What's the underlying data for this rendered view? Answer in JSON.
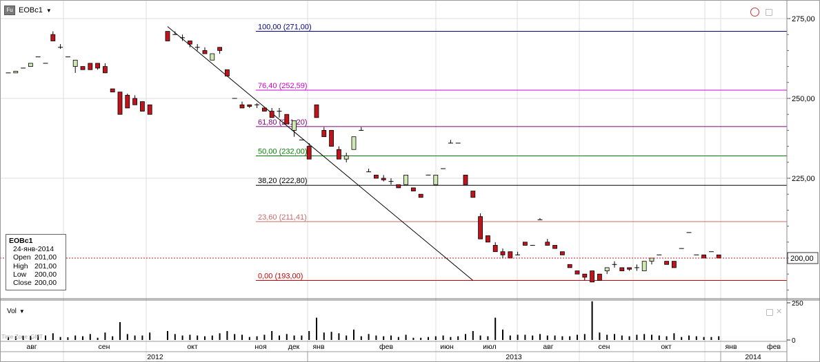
{
  "header": {
    "badge": "Fu",
    "symbol": "EOBc1"
  },
  "data_window": {
    "symbol": "EOBc1",
    "date": "24-янв-2014",
    "rows": [
      {
        "label": "Open",
        "value": "201,00"
      },
      {
        "label": "High",
        "value": "201,00"
      },
      {
        "label": "Low",
        "value": "200,00"
      },
      {
        "label": "Close",
        "value": "200,00"
      }
    ]
  },
  "volume_pane": {
    "label": "Vol",
    "timezone": "Time Zone: GMT"
  },
  "last_price_label": "200,00",
  "colors": {
    "up": "#cfe8b4",
    "down": "#c0141c",
    "trendline": "#000000",
    "last_price": "#c0141c"
  },
  "chart_data": {
    "type": "candlestick",
    "price_axis": {
      "ticks": [
        "275,00",
        "250,00",
        "225,00"
      ],
      "values": [
        275,
        250,
        225
      ],
      "range": [
        186,
        278
      ]
    },
    "volume_axis": {
      "ticks": [
        "250",
        "0"
      ],
      "values": [
        250,
        0
      ]
    },
    "month_labels": [
      "авг",
      "сен",
      "окт",
      "ноя",
      "дек",
      "янв",
      "фев",
      "июн",
      "июл",
      "авг",
      "сен",
      "окт",
      "янв",
      "фев"
    ],
    "year_labels": [
      "2012",
      "2013",
      "2014"
    ],
    "fib_levels": [
      {
        "label": "100,00 (271,00)",
        "price": 271.0,
        "color": "#000080"
      },
      {
        "label": "76,40 (252,59)",
        "price": 252.59,
        "color": "#cc00cc"
      },
      {
        "label": "61,80 (241,20)",
        "price": 241.2,
        "color": "#800080"
      },
      {
        "label": "50,00 (232,00)",
        "price": 232.0,
        "color": "#008000"
      },
      {
        "label": "38,20 (222,80)",
        "price": 222.8,
        "color": "#000000"
      },
      {
        "label": "23,60 (211,41)",
        "price": 211.41,
        "color": "#cc6666"
      },
      {
        "label": "0,00 (193,00)",
        "price": 193.0,
        "color": "#cc0000"
      }
    ],
    "trendline": [
      {
        "index": 20,
        "price": 272.5
      },
      {
        "index": 61,
        "price": 193.0
      }
    ],
    "last_price": 200.0,
    "candles": [
      {
        "o": 258,
        "h": 258,
        "l": 258,
        "c": 258,
        "v": 20
      },
      {
        "o": 258,
        "h": 258.5,
        "l": 258,
        "c": 258.5,
        "v": 25
      },
      {
        "o": 259.5,
        "h": 259.5,
        "l": 259.5,
        "c": 259.5,
        "v": 30
      },
      {
        "o": 260,
        "h": 261,
        "l": 260,
        "c": 261,
        "v": 28
      },
      {
        "o": 263,
        "h": 263,
        "l": 263,
        "c": 263,
        "v": 35
      },
      {
        "o": 261,
        "h": 261,
        "l": 261,
        "c": 261,
        "v": 30
      },
      {
        "o": 270,
        "h": 271,
        "l": 268,
        "c": 268,
        "v": 45
      },
      {
        "o": 266,
        "h": 267,
        "l": 265.5,
        "c": 266,
        "v": 20
      },
      {
        "o": 263,
        "h": 263,
        "l": 263,
        "c": 263,
        "v": 18
      },
      {
        "o": 260,
        "h": 262,
        "l": 258,
        "c": 262,
        "v": 30
      },
      {
        "o": 260,
        "h": 260,
        "l": 259,
        "c": 259,
        "v": 25
      },
      {
        "o": 261,
        "h": 261,
        "l": 259,
        "c": 259,
        "v": 40
      },
      {
        "o": 261,
        "h": 261,
        "l": 259,
        "c": 259.5,
        "v": 15
      },
      {
        "o": 260,
        "h": 261,
        "l": 258,
        "c": 258,
        "v": 50
      },
      {
        "o": 253,
        "h": 253,
        "l": 252,
        "c": 252,
        "v": 25
      },
      {
        "o": 252,
        "h": 252,
        "l": 245,
        "c": 245,
        "v": 120
      },
      {
        "o": 251,
        "h": 251.5,
        "l": 247,
        "c": 247,
        "v": 40
      },
      {
        "o": 250,
        "h": 251,
        "l": 248,
        "c": 248,
        "v": 30
      },
      {
        "o": 249,
        "h": 249,
        "l": 246,
        "c": 246,
        "v": 30
      },
      {
        "o": 248,
        "h": 248,
        "l": 245,
        "c": 245,
        "v": 50
      },
      {
        "o": 271,
        "h": 271,
        "l": 268,
        "c": 268,
        "v": 60
      },
      {
        "o": 270,
        "h": 271,
        "l": 270,
        "c": 270,
        "v": 40
      },
      {
        "o": 269,
        "h": 270,
        "l": 268,
        "c": 269,
        "v": 30
      },
      {
        "o": 268,
        "h": 268,
        "l": 266,
        "c": 267,
        "v": 35
      },
      {
        "o": 266,
        "h": 267,
        "l": 265,
        "c": 266,
        "v": 30
      },
      {
        "o": 265,
        "h": 266,
        "l": 264,
        "c": 264,
        "v": 25
      },
      {
        "o": 262,
        "h": 264,
        "l": 262,
        "c": 264,
        "v": 30
      },
      {
        "o": 266,
        "h": 266,
        "l": 264,
        "c": 265,
        "v": 45
      },
      {
        "o": 259,
        "h": 259,
        "l": 257,
        "c": 257,
        "v": 60
      },
      {
        "o": 250,
        "h": 250,
        "l": 250,
        "c": 250,
        "v": 40
      },
      {
        "o": 248,
        "h": 249,
        "l": 247,
        "c": 247,
        "v": 35
      },
      {
        "o": 248,
        "h": 248,
        "l": 247,
        "c": 247.5,
        "v": 20
      },
      {
        "o": 248,
        "h": 248.5,
        "l": 247,
        "c": 248,
        "v": 25
      },
      {
        "o": 247,
        "h": 247,
        "l": 246,
        "c": 246,
        "v": 35
      },
      {
        "o": 246,
        "h": 247,
        "l": 244,
        "c": 244,
        "v": 60
      },
      {
        "o": 246,
        "h": 247,
        "l": 244,
        "c": 246,
        "v": 30
      },
      {
        "o": 245,
        "h": 245,
        "l": 242,
        "c": 242,
        "v": 40
      },
      {
        "o": 240,
        "h": 243,
        "l": 238,
        "c": 243,
        "v": 30
      },
      {
        "o": 237,
        "h": 237,
        "l": 237,
        "c": 237,
        "v": 30
      },
      {
        "o": 235,
        "h": 236,
        "l": 231,
        "c": 231,
        "v": 60
      },
      {
        "o": 248,
        "h": 248,
        "l": 244,
        "c": 244,
        "v": 150
      },
      {
        "o": 240,
        "h": 241,
        "l": 238,
        "c": 238,
        "v": 50
      },
      {
        "o": 240,
        "h": 240,
        "l": 235,
        "c": 235,
        "v": 55
      },
      {
        "o": 234,
        "h": 235,
        "l": 231,
        "c": 231,
        "v": 45
      },
      {
        "o": 231,
        "h": 233,
        "l": 230,
        "c": 232,
        "v": 30
      },
      {
        "o": 234,
        "h": 238,
        "l": 234,
        "c": 238,
        "v": 70
      },
      {
        "o": 240,
        "h": 241,
        "l": 240,
        "c": 240,
        "v": 25
      },
      {
        "o": 227,
        "h": 228,
        "l": 227,
        "c": 227,
        "v": 40
      },
      {
        "o": 226,
        "h": 226,
        "l": 225,
        "c": 225,
        "v": 30
      },
      {
        "o": 225,
        "h": 226,
        "l": 224,
        "c": 224.5,
        "v": 25
      },
      {
        "o": 224,
        "h": 225,
        "l": 223,
        "c": 224,
        "v": 30
      },
      {
        "o": 223,
        "h": 223,
        "l": 222,
        "c": 222,
        "v": 20
      },
      {
        "o": 223,
        "h": 226,
        "l": 223,
        "c": 226,
        "v": 35
      },
      {
        "o": 222,
        "h": 222,
        "l": 221,
        "c": 221,
        "v": 15
      },
      {
        "o": 220,
        "h": 220,
        "l": 219,
        "c": 219,
        "v": 15
      },
      {
        "o": 226,
        "h": 226,
        "l": 226,
        "c": 226,
        "v": 20
      },
      {
        "o": 223,
        "h": 226,
        "l": 223,
        "c": 226,
        "v": 25
      },
      {
        "o": 228,
        "h": 228,
        "l": 228,
        "c": 228,
        "v": 30
      },
      {
        "o": 236,
        "h": 237,
        "l": 236,
        "c": 236,
        "v": 20
      },
      {
        "o": 236,
        "h": 236,
        "l": 236,
        "c": 236,
        "v": 25
      },
      {
        "o": 226,
        "h": 226,
        "l": 223,
        "c": 223,
        "v": 40
      },
      {
        "o": 221,
        "h": 221,
        "l": 219,
        "c": 219,
        "v": 60
      },
      {
        "o": 213,
        "h": 214,
        "l": 206,
        "c": 206,
        "v": 30
      },
      {
        "o": 207,
        "h": 207,
        "l": 205,
        "c": 205,
        "v": 25
      },
      {
        "o": 204,
        "h": 205,
        "l": 202,
        "c": 202,
        "v": 150
      },
      {
        "o": 202,
        "h": 203,
        "l": 200,
        "c": 201,
        "v": 70
      },
      {
        "o": 202,
        "h": 202,
        "l": 200,
        "c": 200,
        "v": 30
      },
      {
        "o": 201,
        "h": 202,
        "l": 201,
        "c": 201,
        "v": 35
      },
      {
        "o": 205,
        "h": 205,
        "l": 204,
        "c": 204,
        "v": 35
      },
      {
        "o": 204,
        "h": 204,
        "l": 204,
        "c": 204,
        "v": 30
      },
      {
        "o": 212,
        "h": 212.5,
        "l": 212,
        "c": 212,
        "v": 40
      },
      {
        "o": 205,
        "h": 206,
        "l": 204,
        "c": 204,
        "v": 30
      },
      {
        "o": 204,
        "h": 204,
        "l": 203,
        "c": 203,
        "v": 30
      },
      {
        "o": 202,
        "h": 202,
        "l": 201,
        "c": 201,
        "v": 25
      },
      {
        "o": 198,
        "h": 198,
        "l": 197,
        "c": 197,
        "v": 25
      },
      {
        "o": 196,
        "h": 196,
        "l": 195,
        "c": 195,
        "v": 35
      },
      {
        "o": 195,
        "h": 195,
        "l": 193,
        "c": 194,
        "v": 40
      },
      {
        "o": 196,
        "h": 196,
        "l": 192.5,
        "c": 192.5,
        "v": 260
      },
      {
        "o": 195,
        "h": 195,
        "l": 193,
        "c": 193,
        "v": 50
      },
      {
        "o": 196,
        "h": 197,
        "l": 195,
        "c": 197,
        "v": 35
      },
      {
        "o": 198,
        "h": 199,
        "l": 197,
        "c": 198,
        "v": 40
      },
      {
        "o": 197,
        "h": 197,
        "l": 196,
        "c": 196,
        "v": 30
      },
      {
        "o": 197,
        "h": 197,
        "l": 196,
        "c": 196.5,
        "v": 25
      },
      {
        "o": 197,
        "h": 198,
        "l": 196,
        "c": 197,
        "v": 35
      },
      {
        "o": 196,
        "h": 199,
        "l": 196,
        "c": 199,
        "v": 40
      },
      {
        "o": 199,
        "h": 200,
        "l": 198,
        "c": 200,
        "v": 35
      },
      {
        "o": 201,
        "h": 201,
        "l": 201,
        "c": 201,
        "v": 30
      },
      {
        "o": 199,
        "h": 199,
        "l": 198,
        "c": 198,
        "v": 25
      },
      {
        "o": 199,
        "h": 199,
        "l": 197,
        "c": 197,
        "v": 45
      },
      {
        "o": 203,
        "h": 203,
        "l": 203,
        "c": 203,
        "v": 20
      },
      {
        "o": 208,
        "h": 208,
        "l": 208,
        "c": 208,
        "v": 30
      },
      {
        "o": 201,
        "h": 201,
        "l": 201,
        "c": 201,
        "v": 25
      },
      {
        "o": 201,
        "h": 201,
        "l": 200,
        "c": 200,
        "v": 20
      },
      {
        "o": 202,
        "h": 202,
        "l": 202,
        "c": 202,
        "v": 20
      },
      {
        "o": 201,
        "h": 201,
        "l": 200,
        "c": 200,
        "v": 25
      }
    ]
  }
}
